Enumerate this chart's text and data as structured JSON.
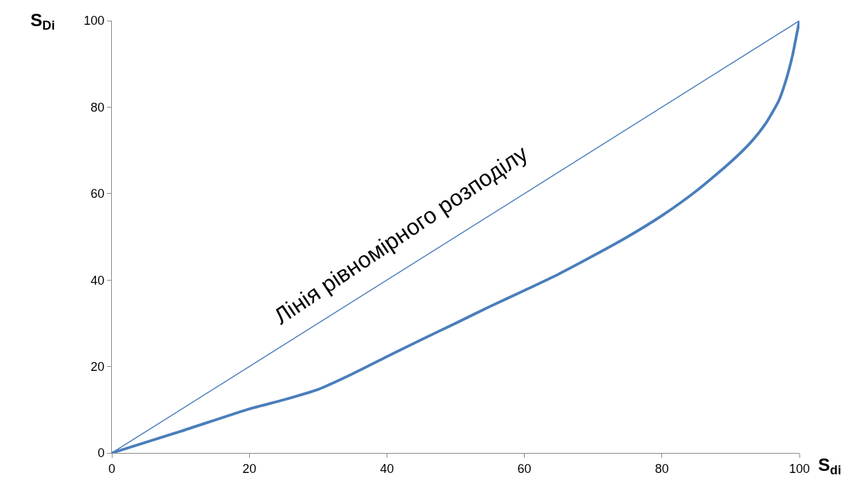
{
  "chart_data": {
    "type": "line",
    "xlabel": "S$_{di}$",
    "ylabel": "S$_{Di}$",
    "xlim": [
      0,
      100
    ],
    "ylim": [
      0,
      100
    ],
    "xticks": [
      0,
      20,
      40,
      60,
      80,
      100
    ],
    "yticks": [
      0,
      20,
      40,
      60,
      80,
      100
    ],
    "marker": "none",
    "line_style": "solid",
    "series": [
      {
        "color": "#4a7ebb",
        "x": [
          0,
          10,
          20,
          25,
          30,
          35,
          40,
          45,
          50,
          55,
          60,
          65,
          70,
          75,
          80,
          85,
          90,
          93,
          95,
          97,
          98,
          99,
          99.5,
          100
        ],
        "values": [
          0,
          5,
          10.2,
          12.3,
          14.7,
          18.3,
          22.3,
          26.2,
          30,
          33.9,
          37.6,
          41.4,
          45.6,
          50,
          54.9,
          60.6,
          67.3,
          72,
          76,
          81.5,
          86,
          92,
          96,
          100
        ]
      },
      {
        "color": "#4a7ebb",
        "x": [
          0,
          100
        ],
        "values": [
          0,
          100
        ]
      }
    ],
    "annotations": [
      "Лінія рівномірного розподілу"
    ]
  }
}
